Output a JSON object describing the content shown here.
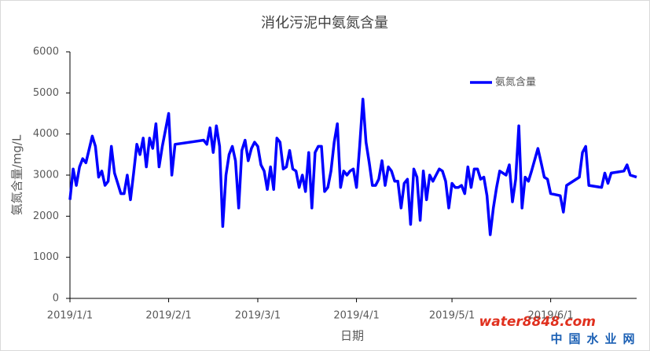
{
  "chart_data": {
    "type": "line",
    "title": "消化污泥中氨氮含量",
    "x_label": "日期",
    "y_label": "氨氮含量/mg/L",
    "x": [
      "2019-01-01",
      "2019-01-02",
      "2019-01-03",
      "2019-01-04",
      "2019-01-05",
      "2019-01-06",
      "2019-01-08",
      "2019-01-09",
      "2019-01-10",
      "2019-01-11",
      "2019-01-12",
      "2019-01-13",
      "2019-01-14",
      "2019-01-15",
      "2019-01-16",
      "2019-01-17",
      "2019-01-18",
      "2019-01-19",
      "2019-01-20",
      "2019-01-21",
      "2019-01-22",
      "2019-01-23",
      "2019-01-24",
      "2019-01-25",
      "2019-01-26",
      "2019-01-27",
      "2019-01-28",
      "2019-01-29",
      "2019-01-30",
      "2019-02-01",
      "2019-02-02",
      "2019-02-03",
      "2019-02-12",
      "2019-02-13",
      "2019-02-14",
      "2019-02-15",
      "2019-02-16",
      "2019-02-17",
      "2019-02-18",
      "2019-02-19",
      "2019-02-20",
      "2019-02-21",
      "2019-02-22",
      "2019-02-23",
      "2019-02-24",
      "2019-02-25",
      "2019-02-26",
      "2019-02-27",
      "2019-02-28",
      "2019-03-01",
      "2019-03-02",
      "2019-03-03",
      "2019-03-04",
      "2019-03-05",
      "2019-03-06",
      "2019-03-07",
      "2019-03-08",
      "2019-03-09",
      "2019-03-10",
      "2019-03-11",
      "2019-03-12",
      "2019-03-13",
      "2019-03-14",
      "2019-03-15",
      "2019-03-16",
      "2019-03-17",
      "2019-03-18",
      "2019-03-19",
      "2019-03-20",
      "2019-03-21",
      "2019-03-22",
      "2019-03-23",
      "2019-03-24",
      "2019-03-25",
      "2019-03-26",
      "2019-03-27",
      "2019-03-28",
      "2019-03-29",
      "2019-03-30",
      "2019-03-31",
      "2019-04-01",
      "2019-04-02",
      "2019-04-03",
      "2019-04-04",
      "2019-04-05",
      "2019-04-06",
      "2019-04-07",
      "2019-04-08",
      "2019-04-09",
      "2019-04-10",
      "2019-04-11",
      "2019-04-12",
      "2019-04-13",
      "2019-04-14",
      "2019-04-15",
      "2019-04-16",
      "2019-04-17",
      "2019-04-18",
      "2019-04-19",
      "2019-04-20",
      "2019-04-21",
      "2019-04-22",
      "2019-04-23",
      "2019-04-24",
      "2019-04-25",
      "2019-04-26",
      "2019-04-27",
      "2019-04-28",
      "2019-04-29",
      "2019-04-30",
      "2019-05-01",
      "2019-05-02",
      "2019-05-03",
      "2019-05-04",
      "2019-05-05",
      "2019-05-06",
      "2019-05-07",
      "2019-05-08",
      "2019-05-09",
      "2019-05-10",
      "2019-05-11",
      "2019-05-12",
      "2019-05-13",
      "2019-05-14",
      "2019-05-15",
      "2019-05-16",
      "2019-05-18",
      "2019-05-19",
      "2019-05-20",
      "2019-05-21",
      "2019-05-22",
      "2019-05-23",
      "2019-05-24",
      "2019-05-25",
      "2019-05-26",
      "2019-05-28",
      "2019-05-29",
      "2019-05-30",
      "2019-05-31",
      "2019-06-01",
      "2019-06-04",
      "2019-06-05",
      "2019-06-06",
      "2019-06-10",
      "2019-06-11",
      "2019-06-12",
      "2019-06-13",
      "2019-06-17",
      "2019-06-18",
      "2019-06-19",
      "2019-06-20",
      "2019-06-24",
      "2019-06-25",
      "2019-06-26",
      "2019-06-28"
    ],
    "series": [
      {
        "name": "氨氮含量",
        "color": "#0000ff",
        "values": [
          2400,
          3150,
          2750,
          3200,
          3400,
          3300,
          3950,
          3700,
          2950,
          3100,
          2750,
          2850,
          3700,
          3050,
          2800,
          2550,
          2550,
          3000,
          2400,
          3050,
          3750,
          3500,
          3900,
          3200,
          3900,
          3650,
          4250,
          3200,
          3700,
          4500,
          3000,
          3750,
          3850,
          3750,
          4150,
          3550,
          4200,
          3700,
          1750,
          3000,
          3500,
          3700,
          3350,
          2200,
          3600,
          3850,
          3350,
          3650,
          3800,
          3700,
          3250,
          3100,
          2650,
          3200,
          2650,
          3900,
          3800,
          3150,
          3200,
          3600,
          3150,
          3100,
          2700,
          3000,
          2600,
          3550,
          2200,
          3550,
          3700,
          3700,
          2600,
          2700,
          3100,
          3800,
          4250,
          2700,
          3100,
          3000,
          3100,
          3150,
          2700,
          3700,
          4850,
          3800,
          3300,
          2750,
          2750,
          2900,
          3350,
          2750,
          3200,
          3100,
          2850,
          2850,
          2200,
          2800,
          2900,
          1800,
          3150,
          2950,
          1900,
          3100,
          2400,
          3000,
          2850,
          3000,
          3150,
          3100,
          2850,
          2200,
          2800,
          2700,
          2700,
          2750,
          2550,
          3200,
          2700,
          3150,
          3150,
          2900,
          2950,
          2500,
          1550,
          2200,
          2700,
          3100,
          3000,
          3250,
          2350,
          2900,
          4200,
          2200,
          2950,
          2850,
          3100,
          3650,
          3300,
          2950,
          2900,
          2550,
          2500,
          2100,
          2750,
          2950,
          3550,
          3700,
          2750,
          2700,
          3050,
          2800,
          3050,
          3100,
          3250,
          3000,
          2950
        ]
      }
    ],
    "xlim": [
      "2019-01-01",
      "2019-06-28"
    ],
    "xticks": [
      {
        "value": "2019-01-01",
        "label": "2019/1/1"
      },
      {
        "value": "2019-02-01",
        "label": "2019/2/1"
      },
      {
        "value": "2019-03-01",
        "label": "2019/3/1"
      },
      {
        "value": "2019-04-01",
        "label": "2019/4/1"
      },
      {
        "value": "2019-05-01",
        "label": "2019/5/1"
      },
      {
        "value": "2019-06-01",
        "label": "2019/6/1"
      }
    ],
    "ylim": [
      0,
      6000
    ],
    "yticks": [
      0,
      1000,
      2000,
      3000,
      4000,
      5000,
      6000
    ],
    "grid": false,
    "legend": "top-right",
    "watermark": {
      "site": "water8848.com",
      "name": "中国水业网"
    }
  }
}
